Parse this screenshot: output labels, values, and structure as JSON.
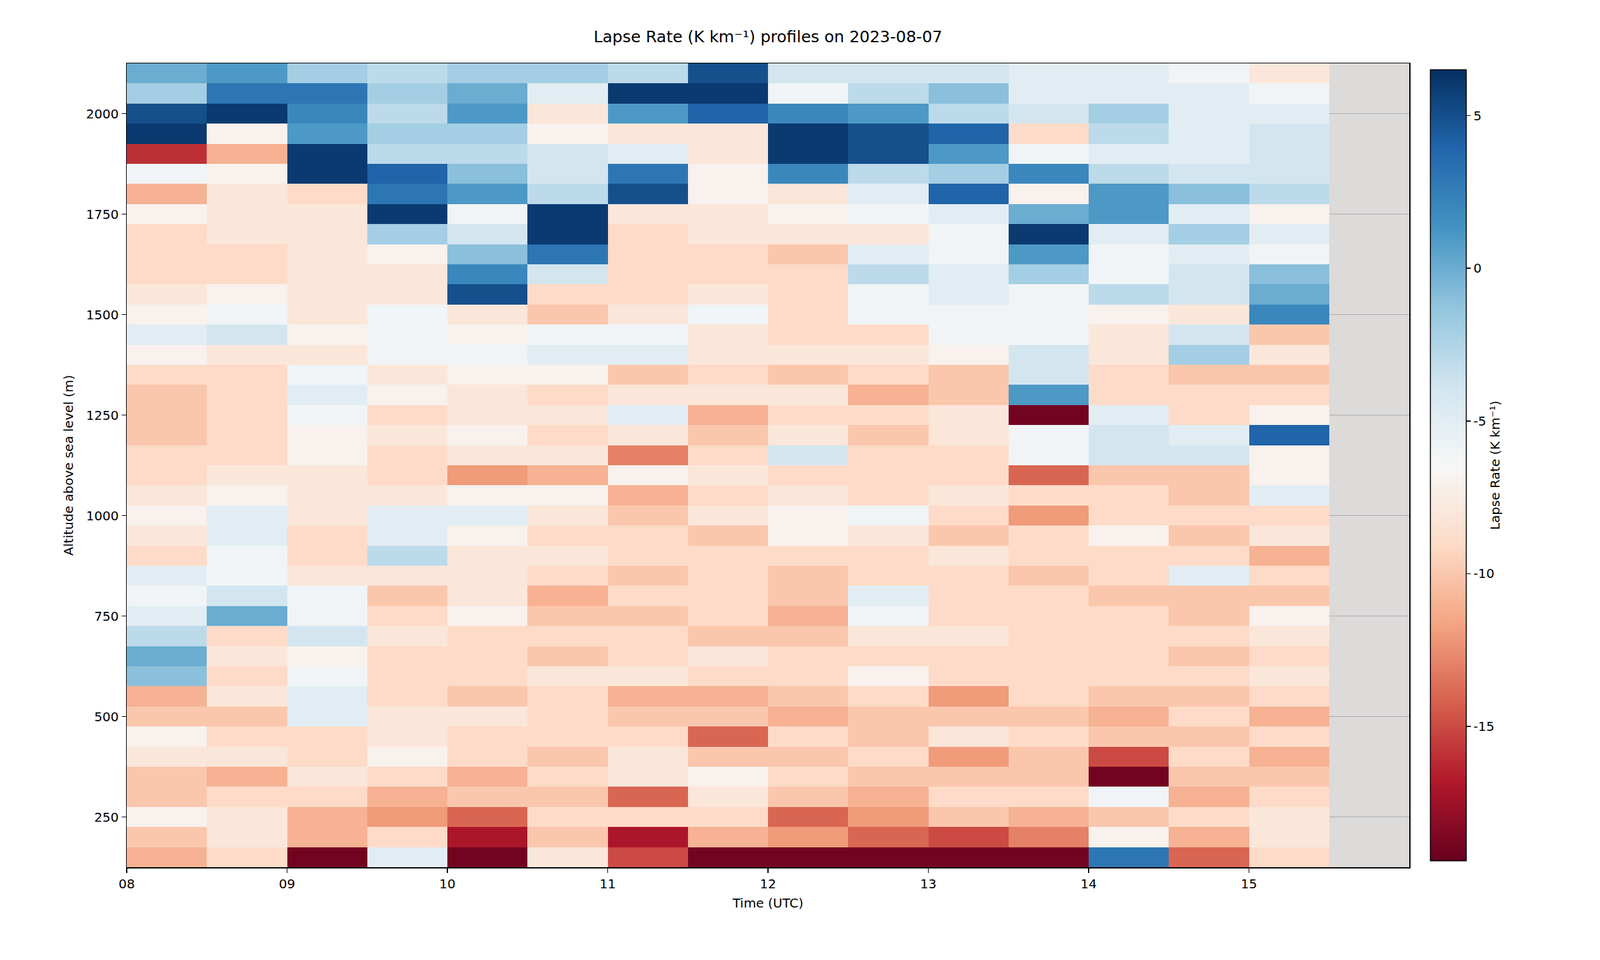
{
  "chart_data": {
    "type": "heatmap",
    "title": "Lapse Rate (K km⁻¹) profiles on 2023-08-07",
    "x_label": "Time (UTC)",
    "y_label": "Altitude above sea level (m)",
    "x": [
      8.25,
      8.75,
      9.25,
      9.75,
      10.25,
      10.75,
      11.25,
      11.75,
      12.25,
      12.75,
      13.25,
      13.75,
      14.25,
      14.75,
      15.25
    ],
    "y": [
      150,
      200,
      250,
      300,
      350,
      400,
      450,
      500,
      550,
      600,
      650,
      700,
      750,
      800,
      850,
      900,
      950,
      1000,
      1050,
      1100,
      1150,
      1200,
      1250,
      1300,
      1350,
      1400,
      1450,
      1500,
      1550,
      1600,
      1650,
      1700,
      1750,
      1800,
      1850,
      1900,
      1950,
      2000,
      2050,
      2100
    ],
    "z_by_time": [
      [
        -11,
        -10,
        -7,
        -10,
        -10,
        -8,
        -7,
        -10,
        -11,
        -1,
        0,
        -3,
        -5,
        -6,
        -5,
        -9,
        -8,
        -7,
        -8,
        -9,
        -9,
        -10,
        -10,
        -10,
        -9,
        -7,
        -5,
        -7,
        -8,
        -9,
        -9,
        -9,
        -7,
        -11,
        -6,
        -16,
        6,
        5,
        -2,
        0
      ],
      [
        -9,
        -8,
        -8,
        -9,
        -11,
        -8,
        -9,
        -10,
        -8,
        -9,
        -8,
        -9,
        0,
        -4,
        -6,
        -6,
        -5,
        -5,
        -7,
        -8,
        -9,
        -9,
        -9,
        -9,
        -9,
        -8,
        -4,
        -6,
        -7,
        -9,
        -9,
        -8,
        -8,
        -8,
        -7,
        -11,
        -7,
        6,
        3,
        1
      ],
      [
        -19,
        -11,
        -11,
        -9,
        -8,
        -9,
        -9,
        -5,
        -5,
        -6,
        -7,
        -4,
        -6,
        -6,
        -8,
        -9,
        -9,
        -8,
        -8,
        -8,
        -7,
        -7,
        -6,
        -5,
        -6,
        -8,
        -7,
        -8,
        -8,
        -8,
        -8,
        -8,
        -8,
        -9,
        6,
        6,
        1,
        2,
        3,
        -2
      ],
      [
        -5,
        -9,
        -12,
        -11,
        -9,
        -7,
        -8,
        -8,
        -9,
        -9,
        -9,
        -8,
        -9,
        -10,
        -8,
        -3,
        -5,
        -5,
        -8,
        -9,
        -9,
        -8,
        -9,
        -7,
        -8,
        -6,
        -6,
        -6,
        -8,
        -8,
        -7,
        -2,
        6,
        3,
        4,
        -3,
        -2,
        -3,
        -2,
        -3
      ],
      [
        -19,
        -17,
        -14,
        -10,
        -11,
        -9,
        -9,
        -8,
        -10,
        -9,
        -9,
        -9,
        -7,
        -8,
        -8,
        -8,
        -7,
        -5,
        -7,
        -12,
        -8,
        -7,
        -8,
        -8,
        -7,
        -6,
        -7,
        -8,
        5,
        2,
        -1,
        -4,
        -6,
        1,
        -1,
        -3,
        -2,
        1,
        0,
        -2
      ],
      [
        -8,
        -10,
        -9,
        -10,
        -9,
        -10,
        -9,
        -9,
        -9,
        -8,
        -10,
        -9,
        -10,
        -11,
        -9,
        -8,
        -9,
        -8,
        -7,
        -11,
        -8,
        -9,
        -8,
        -9,
        -7,
        -5,
        -6,
        -10,
        -9,
        -4,
        3,
        6,
        6,
        -3,
        -4,
        -4,
        -7,
        -8,
        -5,
        -2
      ],
      [
        -15,
        -17,
        -9,
        -14,
        -8,
        -8,
        -9,
        -10,
        -11,
        -8,
        -9,
        -9,
        -10,
        -9,
        -10,
        -9,
        -9,
        -10,
        -11,
        -7,
        -13,
        -8,
        -5,
        -8,
        -10,
        -5,
        -6,
        -8,
        -9,
        -9,
        -9,
        -9,
        -8,
        5,
        3,
        -5,
        -8,
        1,
        6,
        -3
      ],
      [
        -19,
        -11,
        -9,
        -8,
        -7,
        -10,
        -14,
        -10,
        -11,
        -9,
        -8,
        -10,
        -9,
        -9,
        -9,
        -9,
        -10,
        -8,
        -9,
        -8,
        -9,
        -10,
        -11,
        -8,
        -9,
        -8,
        -8,
        -6,
        -8,
        -9,
        -9,
        -8,
        -8,
        -7,
        -7,
        -8,
        -8,
        4,
        6,
        5
      ],
      [
        -19,
        -12,
        -14,
        -10,
        -9,
        -10,
        -9,
        -11,
        -10,
        -9,
        -9,
        -10,
        -11,
        -10,
        -10,
        -9,
        -7,
        -7,
        -8,
        -9,
        -4,
        -8,
        -9,
        -8,
        -10,
        -8,
        -9,
        -9,
        -9,
        -9,
        -10,
        -8,
        -7,
        -8,
        2,
        6,
        6,
        2,
        -6,
        -4
      ],
      [
        -19,
        -14,
        -12,
        -11,
        -10,
        -9,
        -10,
        -10,
        -9,
        -7,
        -9,
        -8,
        -6,
        -5,
        -9,
        -9,
        -8,
        -6,
        -9,
        -9,
        -9,
        -10,
        -9,
        -11,
        -9,
        -8,
        -9,
        -6,
        -6,
        -3,
        -5,
        -8,
        -6,
        -5,
        -3,
        5,
        5,
        1,
        -3,
        -4
      ],
      [
        -19,
        -15,
        -10,
        -9,
        -10,
        -12,
        -8,
        -10,
        -12,
        -9,
        -9,
        -8,
        -9,
        -9,
        -9,
        -8,
        -10,
        -9,
        -8,
        -9,
        -9,
        -8,
        -8,
        -10,
        -10,
        -7,
        -6,
        -6,
        -5,
        -5,
        -6,
        -6,
        -5,
        4,
        -2,
        1,
        4,
        -3,
        -1,
        -4
      ],
      [
        -19,
        -13,
        -11,
        -9,
        -10,
        -10,
        -9,
        -10,
        -9,
        -9,
        -9,
        -9,
        -9,
        -9,
        -10,
        -9,
        -9,
        -12,
        -9,
        -14,
        -6,
        -6,
        -19,
        1,
        -4,
        -4,
        -6,
        -6,
        -6,
        -2,
        1,
        6,
        0,
        -7,
        2,
        -6,
        -9,
        -4,
        -5,
        -5
      ],
      [
        3,
        -7,
        -10,
        -6,
        -19,
        -15,
        -10,
        -11,
        -10,
        -9,
        -9,
        -9,
        -9,
        -10,
        -9,
        -9,
        -7,
        -9,
        -9,
        -10,
        -4,
        -4,
        -5,
        -9,
        -9,
        -8,
        -8,
        -7,
        -3,
        -6,
        -6,
        -5,
        1,
        1,
        -3,
        -5,
        -3,
        -2,
        -5,
        -5
      ],
      [
        -14,
        -11,
        -9,
        -11,
        -10,
        -9,
        -10,
        -9,
        -10,
        -9,
        -10,
        -9,
        -10,
        -10,
        -5,
        -9,
        -10,
        -9,
        -10,
        -10,
        -4,
        -5,
        -9,
        -9,
        -10,
        -2,
        -4,
        -8,
        -4,
        -4,
        -5,
        -2,
        -5,
        -1,
        -4,
        -5,
        -5,
        -5,
        -5,
        -6
      ],
      [
        -9,
        -8,
        -8,
        -9,
        -10,
        -11,
        -9,
        -11,
        -9,
        -8,
        -9,
        -8,
        -7,
        -10,
        -9,
        -11,
        -8,
        -9,
        -5,
        -7,
        -7,
        4,
        -7,
        -9,
        -10,
        -8,
        -10,
        2,
        0,
        -1,
        -6,
        -5,
        -7,
        -3,
        -4,
        -4,
        -4,
        -5,
        -6,
        -8
      ]
    ],
    "xlim": [
      8,
      16
    ],
    "xticks": [
      {
        "value": 8,
        "label": "08"
      },
      {
        "value": 9,
        "label": "09"
      },
      {
        "value": 10,
        "label": "10"
      },
      {
        "value": 11,
        "label": "11"
      },
      {
        "value": 12,
        "label": "12"
      },
      {
        "value": 13,
        "label": "13"
      },
      {
        "value": 14,
        "label": "14"
      },
      {
        "value": 15,
        "label": "15"
      }
    ],
    "ylim": [
      125,
      2125
    ],
    "yticks": [
      250,
      500,
      750,
      1000,
      1250,
      1500,
      1750,
      2000
    ],
    "grid": true,
    "colorbar": {
      "title": "Lapse Rate (K km⁻¹)",
      "range": [
        -19.4,
        6.5
      ],
      "ticks": [
        5,
        0,
        -5,
        -10,
        -15
      ]
    }
  }
}
